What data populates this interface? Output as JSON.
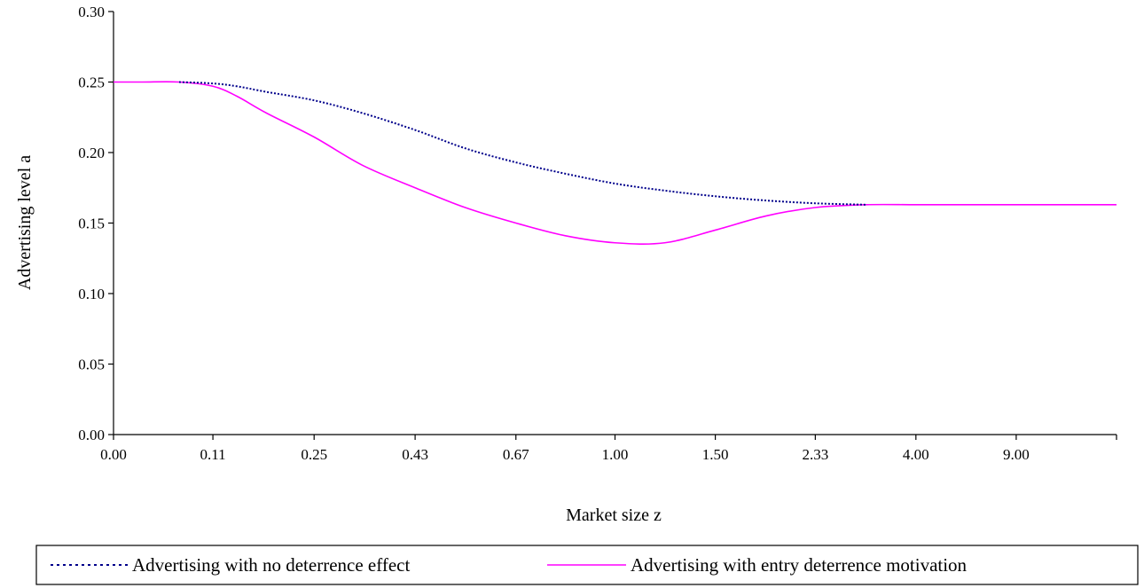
{
  "chart_data": {
    "type": "line",
    "title": "",
    "xlabel": "Market size z",
    "ylabel": "Advertising level a",
    "x_tick_labels": [
      "0.00",
      "0.11",
      "0.25",
      "0.43",
      "0.67",
      "1.00",
      "1.50",
      "2.33",
      "4.00",
      "9.00"
    ],
    "ylim": [
      0,
      0.3
    ],
    "y_ticks": [
      "0.00",
      "0.05",
      "0.10",
      "0.15",
      "0.20",
      "0.25",
      "0.30"
    ],
    "grid": false,
    "legend": "bottom",
    "x": [
      0.0,
      0.03,
      0.07,
      0.11,
      0.14,
      0.18,
      0.25,
      0.33,
      0.43,
      0.54,
      0.67,
      0.82,
      1.0,
      1.22,
      1.5,
      1.86,
      2.33,
      3.0,
      4.0,
      5.67,
      9.0,
      19.0
    ],
    "series": [
      {
        "name": "Advertising with no deterrence effect",
        "style": "dotted",
        "color": "#00008B",
        "values": [
          null,
          null,
          0.25,
          0.249,
          0.247,
          0.243,
          0.237,
          0.228,
          0.216,
          0.203,
          0.193,
          0.185,
          0.178,
          0.173,
          0.169,
          0.166,
          0.164,
          0.163,
          null,
          null,
          null,
          null
        ]
      },
      {
        "name": "Advertising with entry deterrence motivation",
        "style": "solid",
        "color": "#FF00FF",
        "values": [
          0.25,
          0.25,
          0.25,
          0.247,
          0.24,
          0.228,
          0.211,
          0.191,
          0.175,
          0.161,
          0.15,
          0.141,
          0.136,
          0.136,
          0.145,
          0.155,
          0.161,
          0.163,
          0.163,
          0.163,
          0.163,
          0.163
        ]
      }
    ]
  }
}
